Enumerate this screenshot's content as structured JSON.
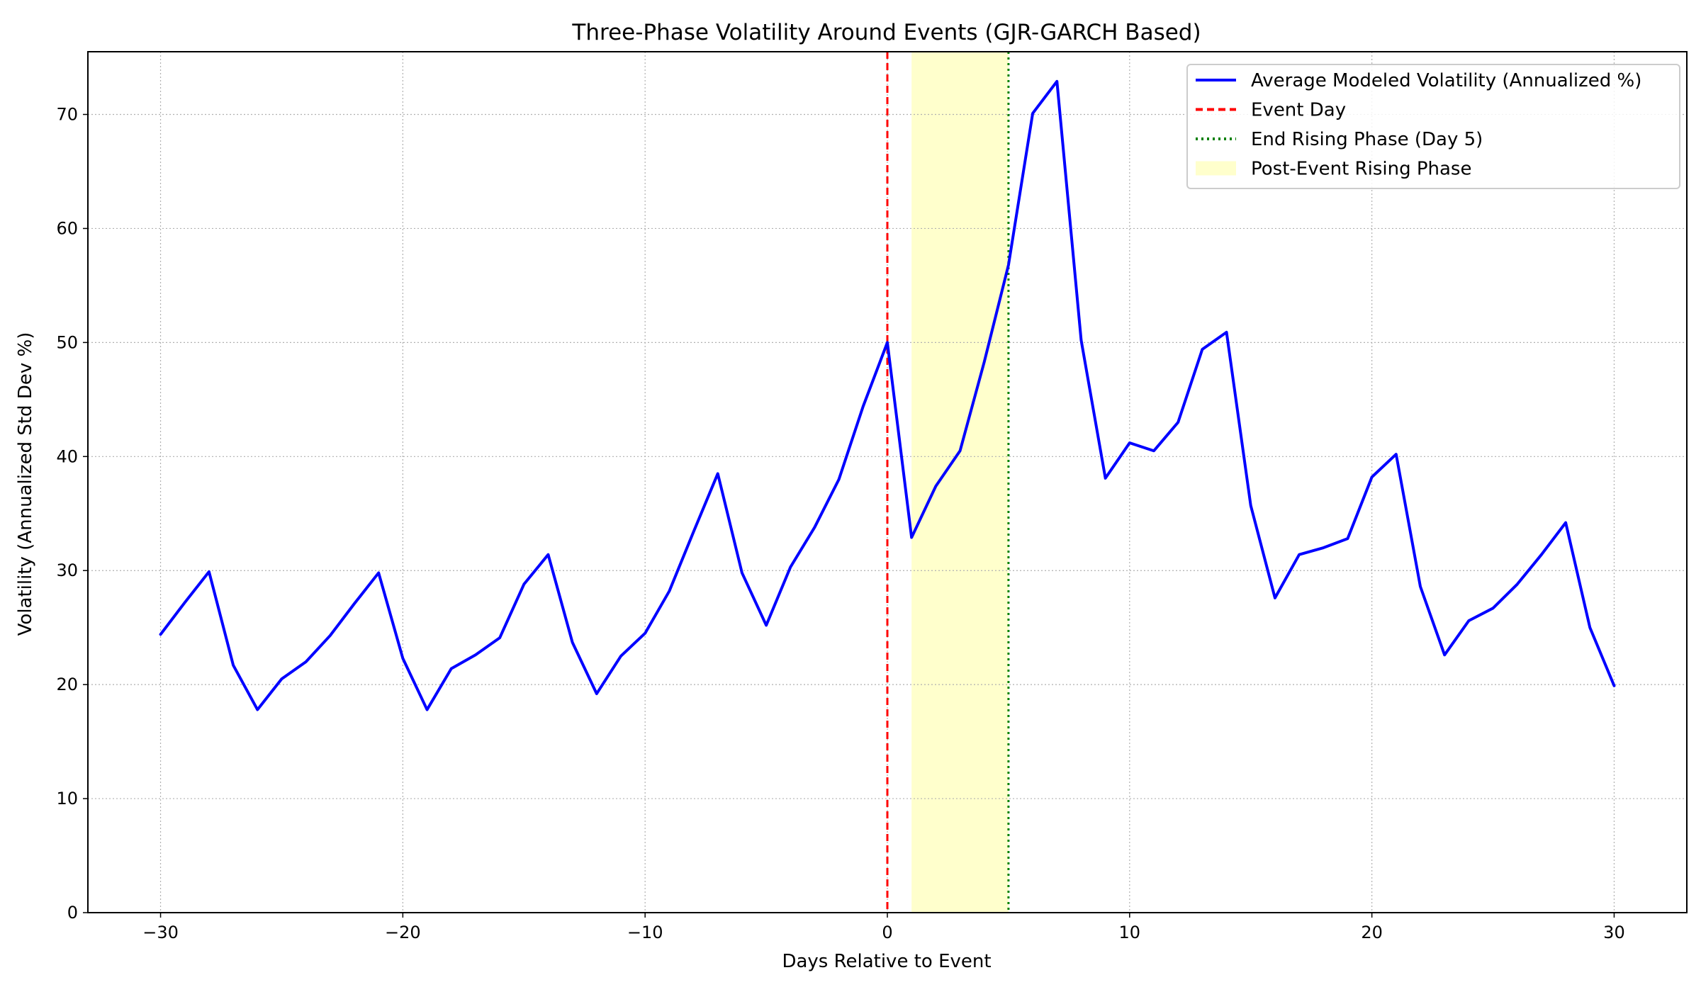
{
  "chart_data": {
    "type": "line",
    "title": "Three-Phase Volatility Around Events (GJR-GARCH Based)",
    "xlabel": "Days Relative to Event",
    "ylabel": "Volatility (Annualized Std Dev %)",
    "xlim": [
      -33,
      33
    ],
    "ylim": [
      0,
      75.5
    ],
    "x_ticks": [
      -30,
      -20,
      -10,
      0,
      10,
      20,
      30
    ],
    "x_tick_labels": [
      "−30",
      "−20",
      "−10",
      "0",
      "10",
      "20",
      "30"
    ],
    "y_ticks": [
      0,
      10,
      20,
      30,
      40,
      50,
      60,
      70
    ],
    "y_tick_labels": [
      "0",
      "10",
      "20",
      "30",
      "40",
      "50",
      "60",
      "70"
    ],
    "grid": true,
    "legend_position": "top-right",
    "series": [
      {
        "name": "Average Modeled Volatility (Annualized %)",
        "color": "#0000ff",
        "style": "solid",
        "x": [
          -30,
          -29,
          -28,
          -27,
          -26,
          -25,
          -24,
          -23,
          -22,
          -21,
          -20,
          -19,
          -18,
          -17,
          -16,
          -15,
          -14,
          -13,
          -12,
          -11,
          -10,
          -9,
          -8,
          -7,
          -6,
          -5,
          -4,
          -3,
          -2,
          -1,
          0,
          1,
          2,
          3,
          4,
          5,
          6,
          7,
          8,
          9,
          10,
          11,
          12,
          13,
          14,
          15,
          16,
          17,
          18,
          19,
          20,
          21,
          22,
          23,
          24,
          25,
          26,
          27,
          28,
          29,
          30
        ],
        "values": [
          24.4,
          27.2,
          29.9,
          21.7,
          17.8,
          20.5,
          22.0,
          24.3,
          27.1,
          29.8,
          22.3,
          17.8,
          21.4,
          22.6,
          24.1,
          28.8,
          31.4,
          23.7,
          19.2,
          22.5,
          24.5,
          28.2,
          33.4,
          38.5,
          29.8,
          25.2,
          30.3,
          33.8,
          38.0,
          44.4,
          50.0,
          32.9,
          37.4,
          40.5,
          48.3,
          56.8,
          70.1,
          72.9,
          50.2,
          38.1,
          41.2,
          40.5,
          43.0,
          49.4,
          50.9,
          35.7,
          27.6,
          31.4,
          32.0,
          32.8,
          38.2,
          40.2,
          28.6,
          22.6,
          25.6,
          26.7,
          28.8,
          31.4,
          34.2,
          25.0,
          19.9
        ]
      }
    ],
    "reference_lines": [
      {
        "name": "Event Day",
        "x": 0,
        "color": "#ff0000",
        "style": "dashed"
      },
      {
        "name": "End Rising Phase (Day 5)",
        "x": 5,
        "color": "#008000",
        "style": "dotted"
      }
    ],
    "shaded_regions": [
      {
        "name": "Post-Event Rising Phase",
        "x_start": 1,
        "x_end": 5,
        "color": "#ffffcc"
      }
    ],
    "legend": [
      {
        "label": "Average Modeled Volatility (Annualized %)",
        "kind": "line-solid",
        "color": "#0000ff"
      },
      {
        "label": "Event Day",
        "kind": "line-dashed",
        "color": "#ff0000"
      },
      {
        "label": "End Rising Phase (Day 5)",
        "kind": "line-dotted",
        "color": "#008000"
      },
      {
        "label": "Post-Event Rising Phase",
        "kind": "patch",
        "color": "#ffffcc"
      }
    ]
  }
}
